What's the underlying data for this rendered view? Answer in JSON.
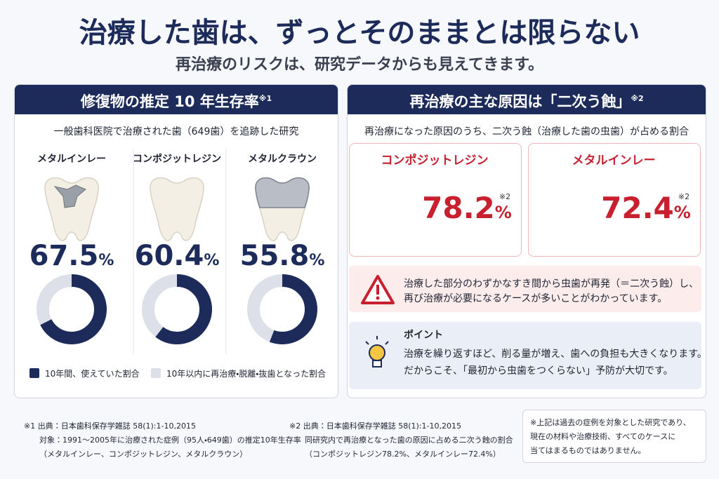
{
  "header": {
    "title": "治療した歯は、ずっとそのままとは限らない",
    "subtitle": "再治療のリスクは、研究データからも見えてきます。"
  },
  "left": {
    "title": "修復物の推定 10 年生存率",
    "note_mark": "※1",
    "caption": "一般歯科医院で治療された歯（649歯）を追跡した研究",
    "items": [
      {
        "name": "メタルインレー",
        "value": 67.5,
        "unit": "%"
      },
      {
        "name": "コンポジットレジン",
        "value": 60.4,
        "unit": "%"
      },
      {
        "name": "メタルクラウン",
        "value": 55.8,
        "unit": "%"
      }
    ],
    "legend": [
      {
        "label": "10年間、使えていた割合",
        "color": "#1c2b5a"
      },
      {
        "label": "10年以内に再治療・脱離・抜歯となった割合",
        "color": "#dde0e8"
      }
    ]
  },
  "right": {
    "title": "再治療の主な原因は「二次う蝕」",
    "note_mark": "※2",
    "caption": "再治療になった原因のうち、二次う蝕（治療した歯の虫歯）が占める割合",
    "items": [
      {
        "name": "コンポジットレジン",
        "value": 78.2,
        "unit": "%",
        "note_mark": "※2"
      },
      {
        "name": "メタルインレー",
        "value": 72.4,
        "unit": "%",
        "note_mark": "※2"
      }
    ],
    "warning": [
      "治療した部分のわずかなすき間から虫歯が再発（＝二次う蝕）し、",
      "再び治療が必要になるケースが多いことがわかっています。"
    ],
    "point": {
      "title": "ポイント",
      "lines": [
        "治療を繰り返すほど、削る量が増え、歯への負担も大きくなります。",
        "だからこそ、「最初から虫歯をつくらない」予防が大切です。"
      ]
    }
  },
  "footnotes": [
    {
      "mark": "※1",
      "lines": [
        "出典：日本歯科保存学雑誌 58(1):1-10,2015",
        "対象：1991～2005年に治療された症例（95人・649歯）の推定10年生存率",
        "（メタルインレー、コンポジットレジン、メタルクラウン）"
      ]
    },
    {
      "mark": "※2",
      "lines": [
        "出典：日本歯科保存学雑誌 58(1):1-10,2015",
        "同研究内で再治療となった歯の原因に占める二次う蝕の割合",
        "（コンポジットレジン78.2%、メタルインレー72.4%）"
      ]
    }
  ],
  "disclaimer": [
    "※上記は過去の症例を対象とした研究であり、",
    "現在の材料や治療技術、すべてのケースに",
    "当てはまるものではありません。"
  ]
}
